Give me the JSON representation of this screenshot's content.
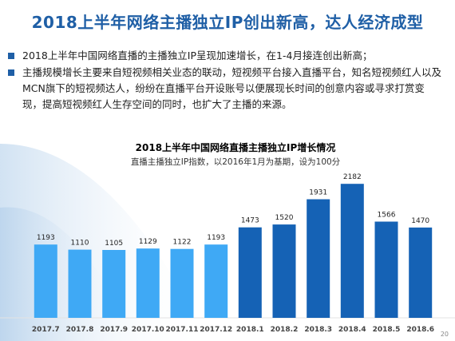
{
  "slide": {
    "title": "2018上半年网络主播独立IP创出新高，达人经济成型",
    "bullets": [
      "2018上半年中国网络直播的主播独立IP呈现加速增长，在1-4月接连创出新高；",
      "主播规模增长主要来自短视频相关业态的联动，短视频平台接入直播平台，知名短视频红人以及MCN旗下的短视频达人，纷纷在直播平台开设账号以便展现长时间的创意内容或寻求打赏变现，提高短视频红人生存空间的同时，也扩大了主播的来源。"
    ],
    "page_number": "20",
    "colors": {
      "title": "#1f5fa6",
      "bar_2017": "#3fa9f5",
      "bar_2018": "#1562b5"
    }
  },
  "chart_data": {
    "type": "bar",
    "title": "2018上半年中国网络直播主播独立IP增长情况",
    "subtitle": "直播主播独立IP指数，以2016年1月为基期，设为100分",
    "categories": [
      "2017.7",
      "2017.8",
      "2017.9",
      "2017.10",
      "2017.11",
      "2017.12",
      "2018.1",
      "2018.2",
      "2018.3",
      "2018.4",
      "2018.5",
      "2018.6"
    ],
    "values": [
      1193,
      1110,
      1105,
      1129,
      1122,
      1193,
      1473,
      1520,
      1931,
      2182,
      1566,
      1470
    ],
    "data_labels": [
      "1193",
      "1110",
      "1105",
      "1129",
      "1122",
      "1193",
      "1473",
      "1520",
      "1931",
      "2182",
      "1566",
      "1470"
    ],
    "ylim": [
      0,
      2600
    ],
    "grid": false,
    "xlabel": "",
    "ylabel": ""
  }
}
